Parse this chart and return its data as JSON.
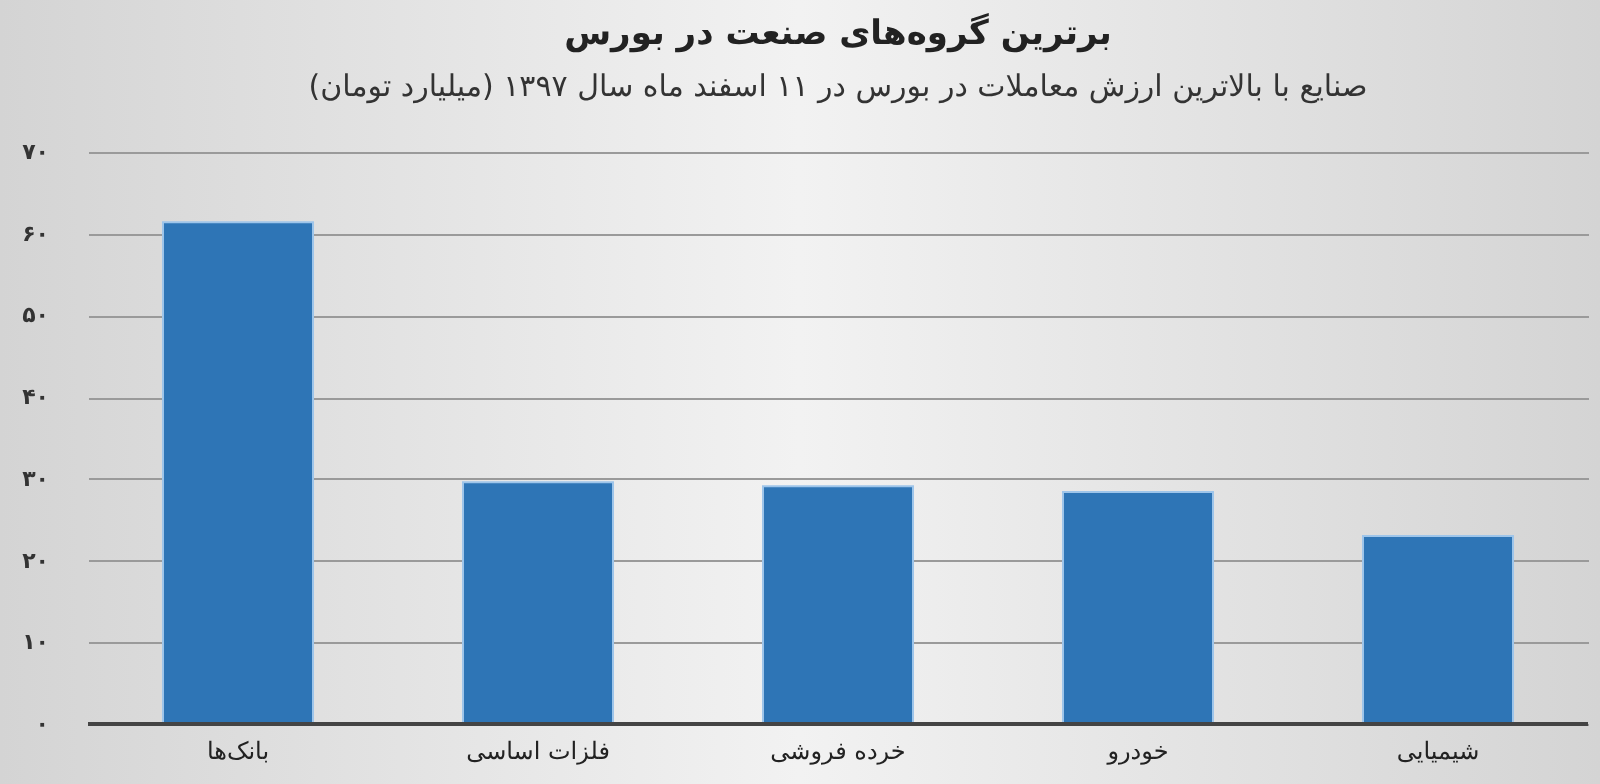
{
  "chart_data": {
    "type": "bar",
    "title": "برترین گروه‌های صنعت در بورس",
    "subtitle": "صنایع با بالاترین ارزش معاملات در بورس در ۱۱ اسفند ماه سال ۱۳۹۷ (میلیارد تومان)",
    "categories": [
      "بانک‌ها",
      "فلزات اساسی",
      "خرده فروشی",
      "خودرو",
      "شیمیایی"
    ],
    "values": [
      61.4,
      29.6,
      29.1,
      28.4,
      23.0
    ],
    "color": "#2e75b6",
    "ylim": [
      0,
      70
    ],
    "yticks": [
      {
        "value": 0,
        "label": "۰"
      },
      {
        "value": 10,
        "label": "۱۰"
      },
      {
        "value": 20,
        "label": "۲۰"
      },
      {
        "value": 30,
        "label": "۳۰"
      },
      {
        "value": 40,
        "label": "۴۰"
      },
      {
        "value": 50,
        "label": "۵۰"
      },
      {
        "value": 60,
        "label": "۶۰"
      },
      {
        "value": 70,
        "label": "۷۰"
      }
    ],
    "grid": "y"
  }
}
